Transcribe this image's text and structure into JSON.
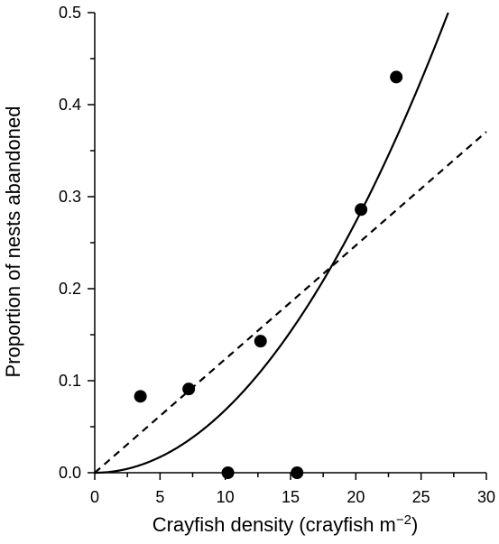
{
  "chart_data": {
    "type": "scatter",
    "title": "",
    "xlabel": "Crayfish density (crayfish m",
    "xlabel_superscript": "−2",
    "xlabel_suffix": ")",
    "ylabel": "Proportion of nests abandoned",
    "xlim": [
      0,
      30
    ],
    "ylim": [
      0.0,
      0.5
    ],
    "x_ticks": [
      0,
      5,
      10,
      15,
      20,
      25,
      30
    ],
    "x_tick_labels": [
      "0",
      "5",
      "10",
      "15",
      "20",
      "25",
      "30"
    ],
    "y_ticks": [
      0.0,
      0.1,
      0.2,
      0.3,
      0.4,
      0.5
    ],
    "y_tick_labels": [
      "0.0",
      "0.1",
      "0.2",
      "0.3",
      "0.4",
      "0.5"
    ],
    "grid": false,
    "points": [
      {
        "x": 3.5,
        "y": 0.083
      },
      {
        "x": 7.2,
        "y": 0.091
      },
      {
        "x": 10.2,
        "y": 0.0
      },
      {
        "x": 12.7,
        "y": 0.143
      },
      {
        "x": 15.5,
        "y": 0.0
      },
      {
        "x": 20.4,
        "y": 0.286
      },
      {
        "x": 23.1,
        "y": 0.43
      }
    ],
    "fits": [
      {
        "style": "solid",
        "model": "power",
        "a": 0.000682,
        "b": 2.0
      },
      {
        "style": "dashed",
        "model": "linear",
        "slope": 0.01235,
        "intercept": 0.0
      }
    ]
  }
}
